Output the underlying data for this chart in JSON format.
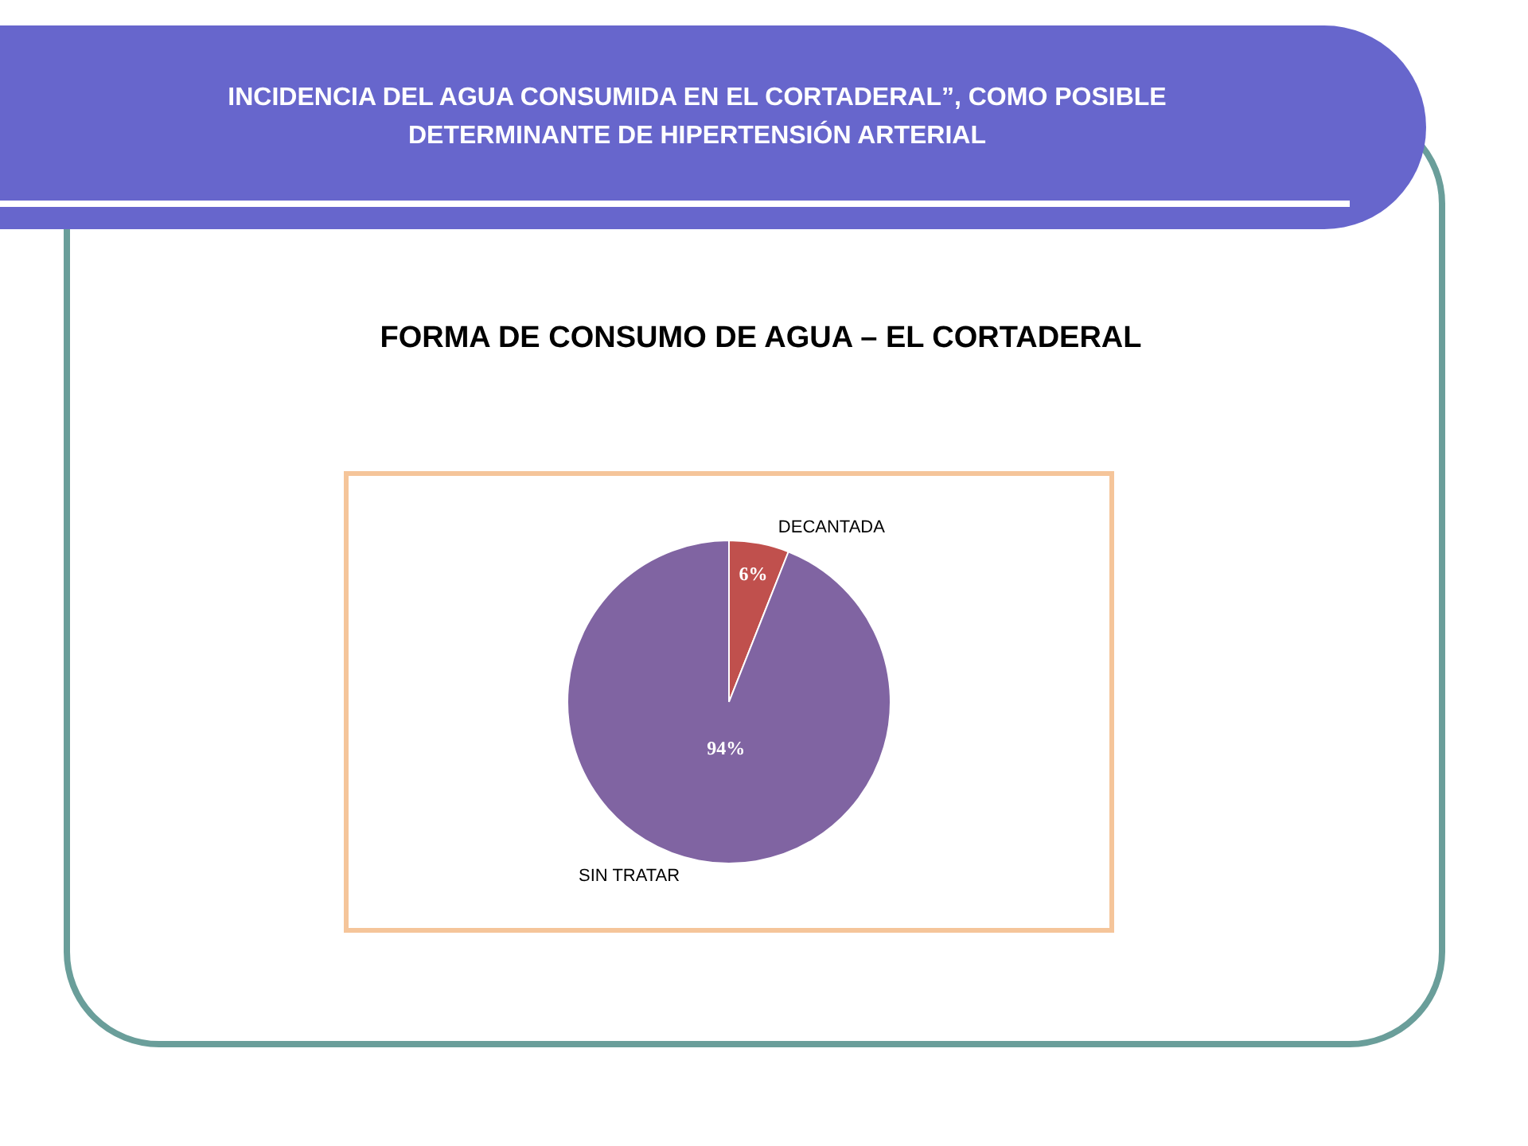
{
  "chart_data": {
    "type": "pie",
    "title": "INCIDENCIA DEL AGUA CONSUMIDA EN EL CORTADERAL”, COMO POSIBLE DETERMINANTE DE HIPERTENSIÓN ARTERIAL",
    "subtitle": "FORMA DE CONSUMO DE AGUA – EL CORTADERAL",
    "categories": [
      "DECANTADA",
      "SIN TRATAR"
    ],
    "values": [
      6,
      94
    ],
    "colors": [
      "#c0504d",
      "#8064a2"
    ],
    "value_labels": [
      "6%",
      "94%"
    ],
    "legend": false
  }
}
